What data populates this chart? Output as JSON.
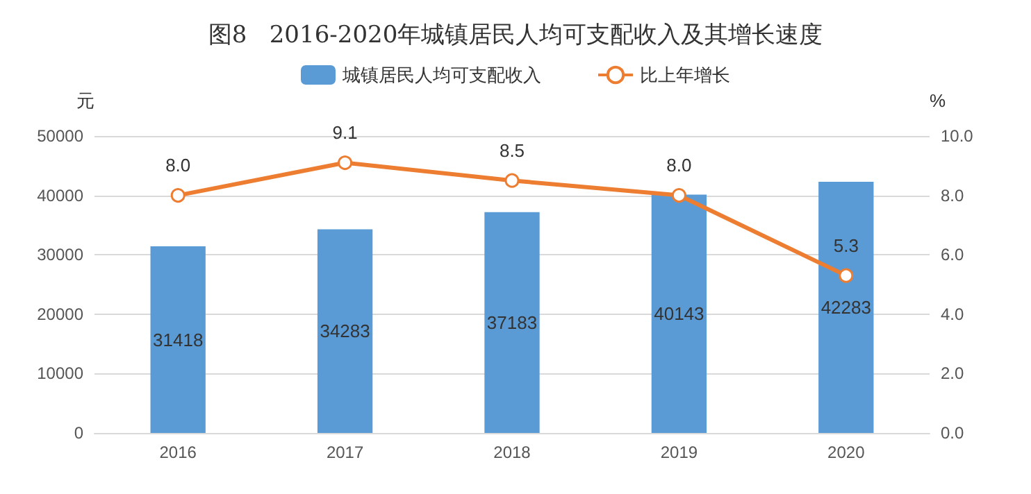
{
  "chart_data": {
    "type": "bar",
    "title": "图8   2016-2020年城镇居民人均可支配收入及其增长速度",
    "ylabel": "元",
    "y2label": "%",
    "categories": [
      "2016",
      "2017",
      "2018",
      "2019",
      "2020"
    ],
    "series": [
      {
        "name": "城镇居民人均可支配收入",
        "color": "#5b9bd5",
        "values": [
          31418,
          34283,
          37183,
          40143,
          42283
        ]
      },
      {
        "name": "比上年增长",
        "type": "line",
        "axis": "y2",
        "color": "#ed7d31",
        "values": [
          8.0,
          9.1,
          8.5,
          8.0,
          5.3
        ],
        "value_labels": [
          "8.0",
          "9.1",
          "8.5",
          "8.0",
          "5.3"
        ]
      }
    ],
    "data_labels": true,
    "ylim": [
      0,
      50000
    ],
    "yticks": [
      0,
      10000,
      20000,
      30000,
      40000,
      50000
    ],
    "y2lim": [
      0,
      10
    ],
    "y2ticks": [
      {
        "value": 0,
        "label": "0.0"
      },
      {
        "value": 2,
        "label": "2.0"
      },
      {
        "value": 4,
        "label": "4.0"
      },
      {
        "value": 6,
        "label": "6.0"
      },
      {
        "value": 8,
        "label": "8.0"
      },
      {
        "value": 10,
        "label": "10.0"
      }
    ],
    "grid": "y",
    "legend": "top",
    "marker": "circle",
    "line_style": "solid"
  }
}
